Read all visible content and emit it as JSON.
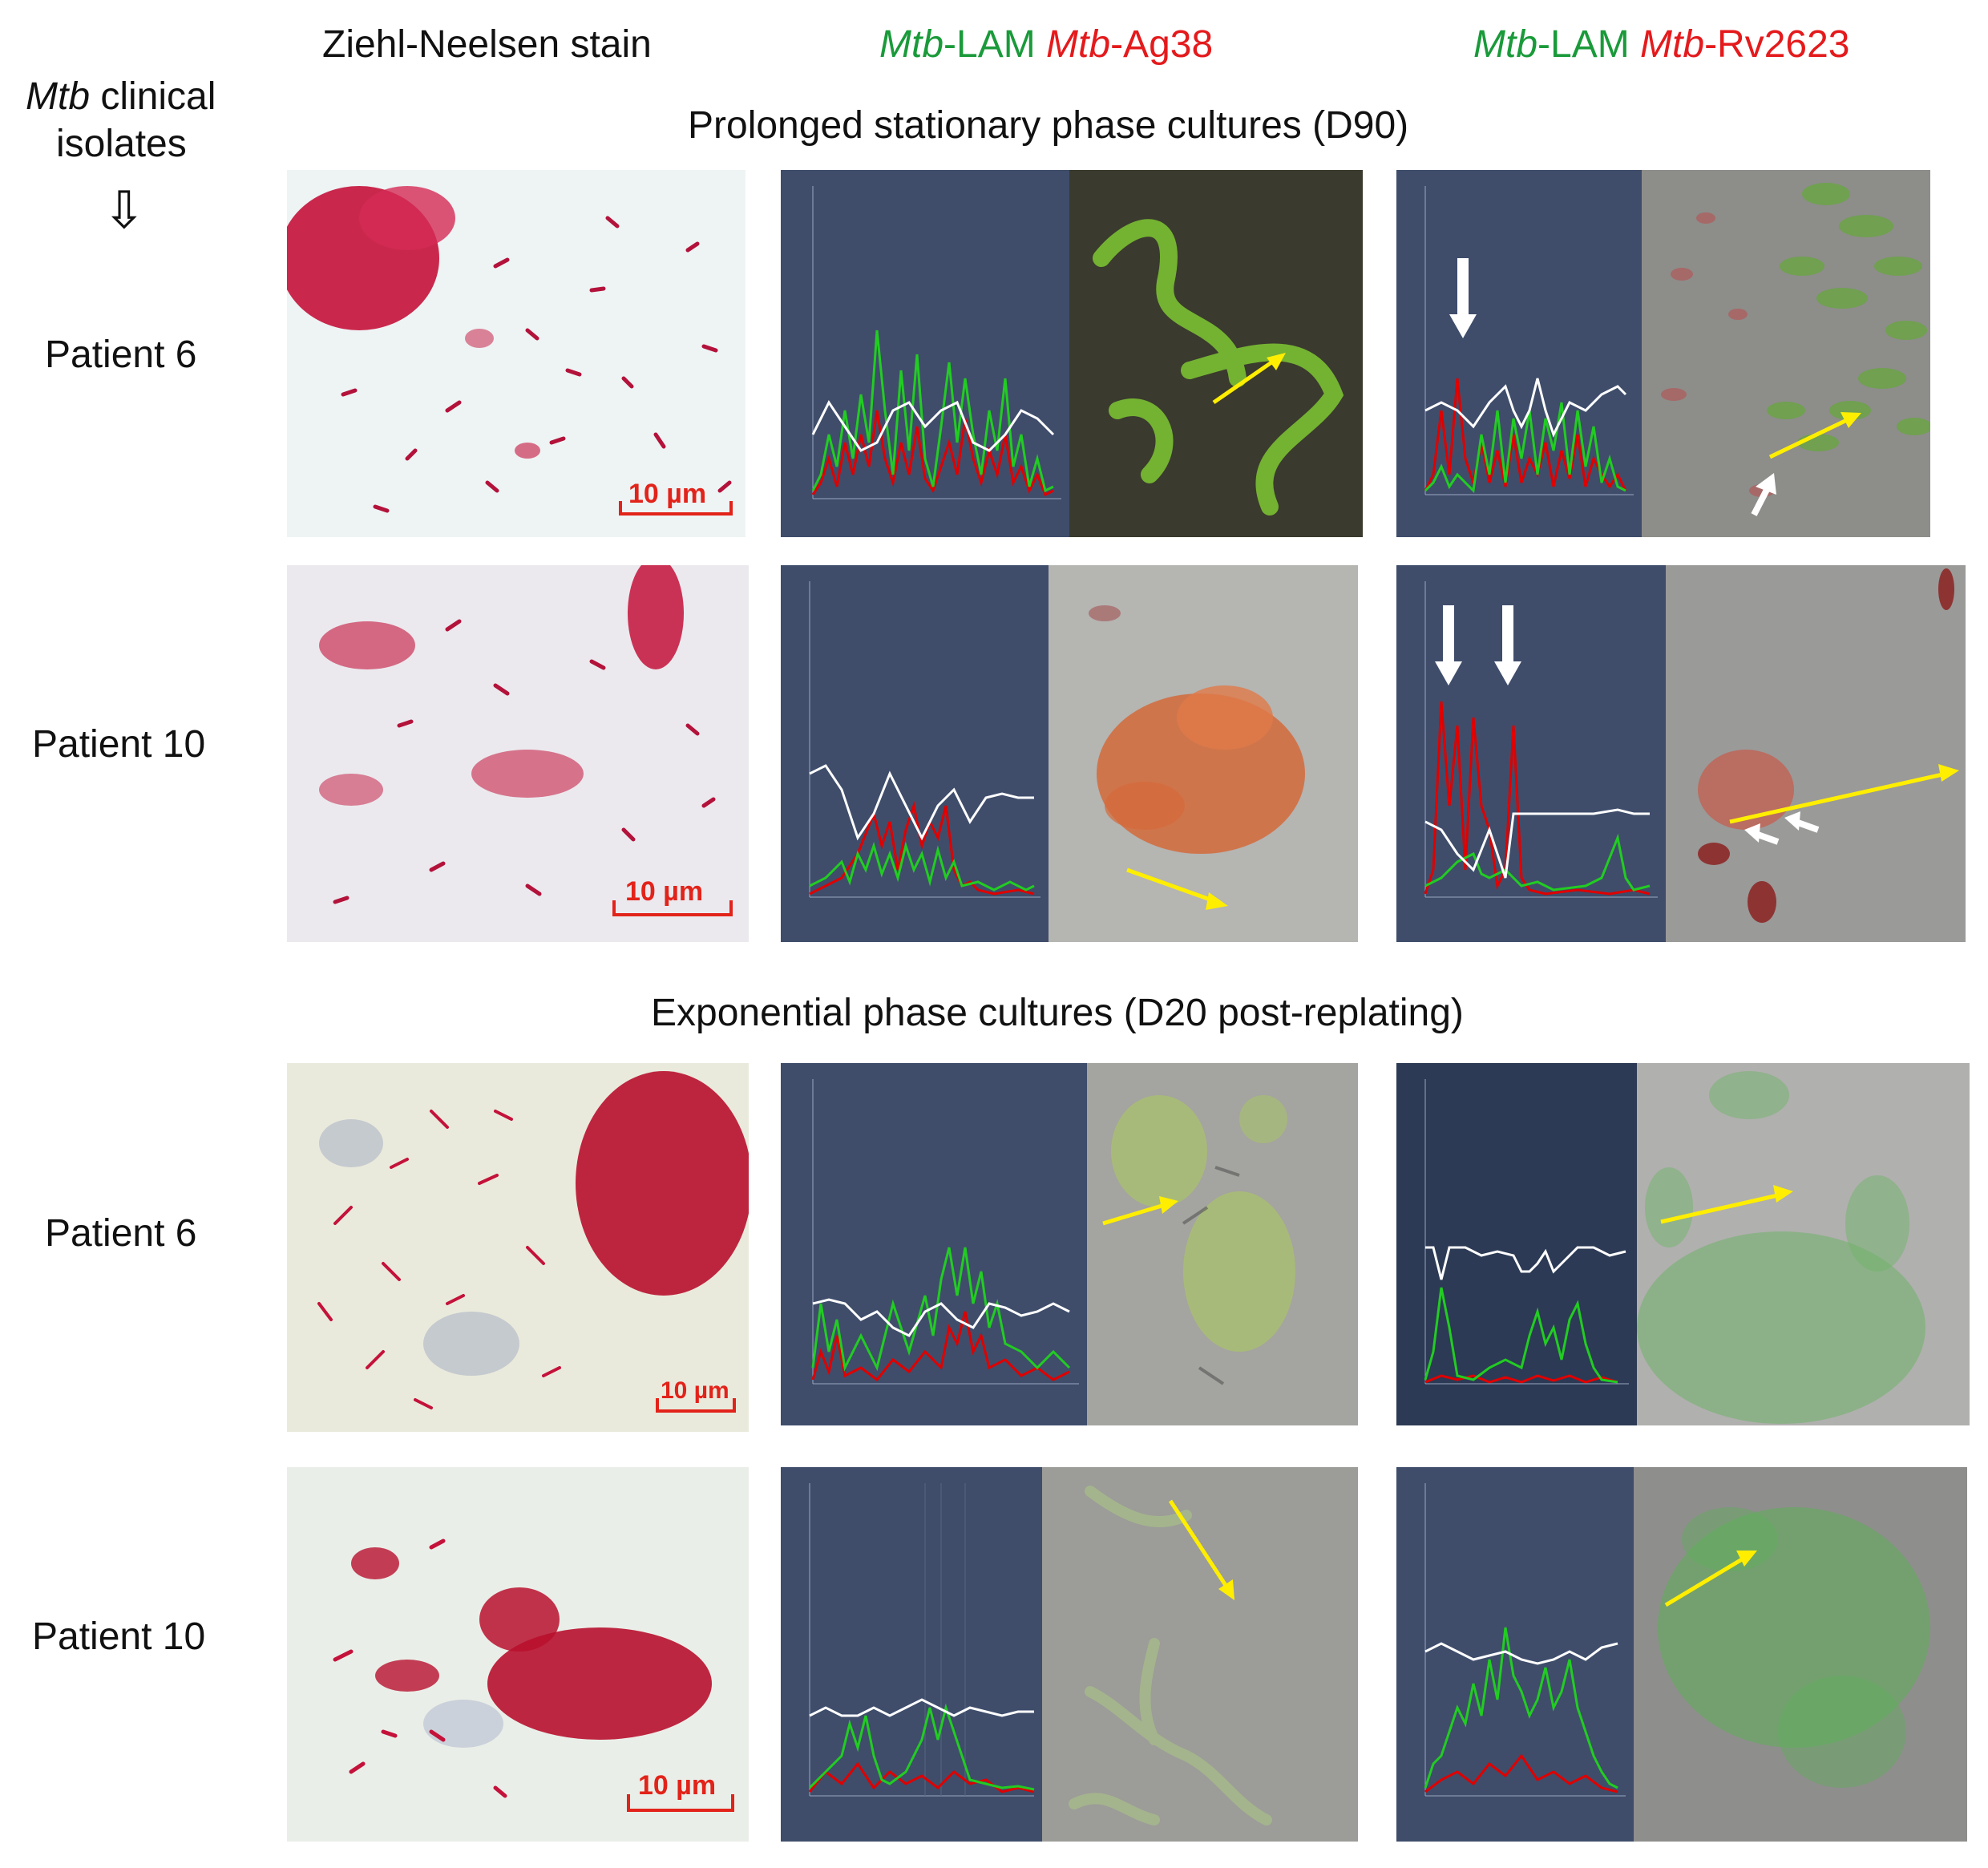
{
  "headers": {
    "col1": "Ziehl-Neelsen stain",
    "col2_green": "Mtb-LAM",
    "col2_red": "Mtb-Ag38",
    "col3_green": "Mtb-LAM",
    "col3_red": "Mtb-Rv2623",
    "mtb_prefix": "Mtb",
    "lam_suffix": "-LAM",
    "ag38_suffix": "-Ag38",
    "rv_suffix": "-Rv2623",
    "rowhead_italic": "Mtb",
    "rowhead_rest": " clinical",
    "rowhead_line2": "isolates",
    "down_arrow": "⇩"
  },
  "sections": {
    "stationary": "Prolonged stationary phase cultures (D90)",
    "exponential": "Exponential phase cultures (D20 post-replating)"
  },
  "rows": [
    {
      "label": "Patient 6"
    },
    {
      "label": "Patient 10"
    },
    {
      "label": "Patient 6"
    },
    {
      "label": "Patient 10"
    }
  ],
  "scale_bar": "10 µm",
  "colors": {
    "zn_red": "#c4123a",
    "plot_bg": "#3f4d6b",
    "green_channel": "#22cc22",
    "red_channel": "#e00000",
    "trace_white": "#ffffff",
    "arrow_yellow": "#ffee00",
    "arrow_white": "#ffffff"
  }
}
